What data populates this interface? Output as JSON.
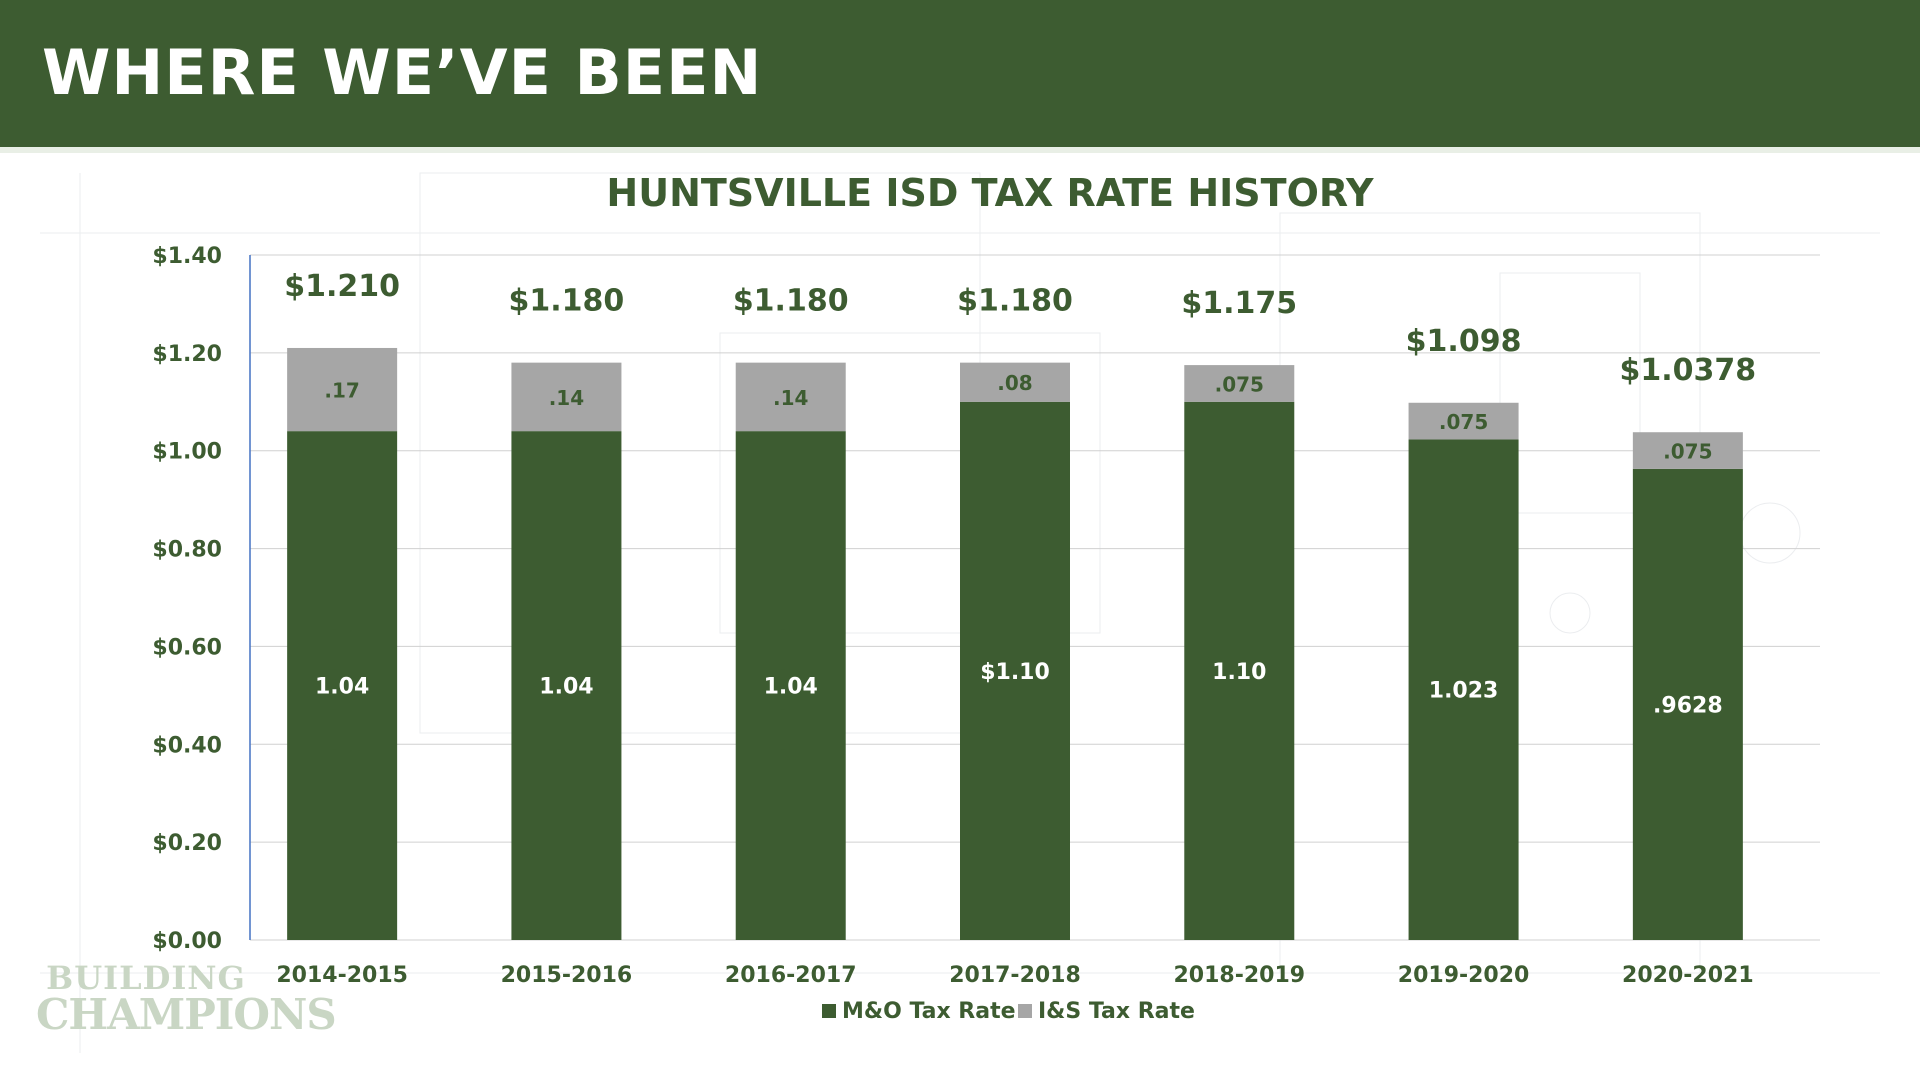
{
  "header": {
    "title": "WHERE WE’VE BEEN"
  },
  "logo": {
    "line1": "BUILDING",
    "line2": "CHAMPIONS"
  },
  "colors": {
    "mo": "#3d5c31",
    "is": "#a6a6a6",
    "text": "#3d5c31",
    "axis": "#4472c4"
  },
  "chart_data": {
    "type": "bar",
    "stacked": true,
    "title": "HUNTSVILLE ISD TAX RATE HISTORY",
    "categories": [
      "2014-2015",
      "2015-2016",
      "2016-2017",
      "2017-2018",
      "2018-2019",
      "2019-2020",
      "2020-2021"
    ],
    "series": [
      {
        "name": "M&O Tax Rate",
        "values": [
          1.04,
          1.04,
          1.04,
          1.1,
          1.1,
          1.023,
          0.9628
        ],
        "labels": [
          "1.04",
          "1.04",
          "1.04",
          "$1.10",
          "1.10",
          "1.023",
          ".9628"
        ]
      },
      {
        "name": "I&S Tax Rate",
        "values": [
          0.17,
          0.14,
          0.14,
          0.08,
          0.075,
          0.075,
          0.075
        ],
        "labels": [
          ".17",
          ".14",
          ".14",
          ".08",
          ".075",
          ".075",
          ".075"
        ]
      }
    ],
    "totals": [
      "$1.210",
      "$1.180",
      "$1.180",
      "$1.180",
      "$1.175",
      "$1.098",
      "$1.0378"
    ],
    "ylim": [
      0,
      1.4
    ],
    "yticks": [
      "$0.00",
      "$0.20",
      "$0.40",
      "$0.60",
      "$0.80",
      "$1.00",
      "$1.20",
      "$1.40"
    ],
    "legend_position": "bottom",
    "grid": true
  }
}
